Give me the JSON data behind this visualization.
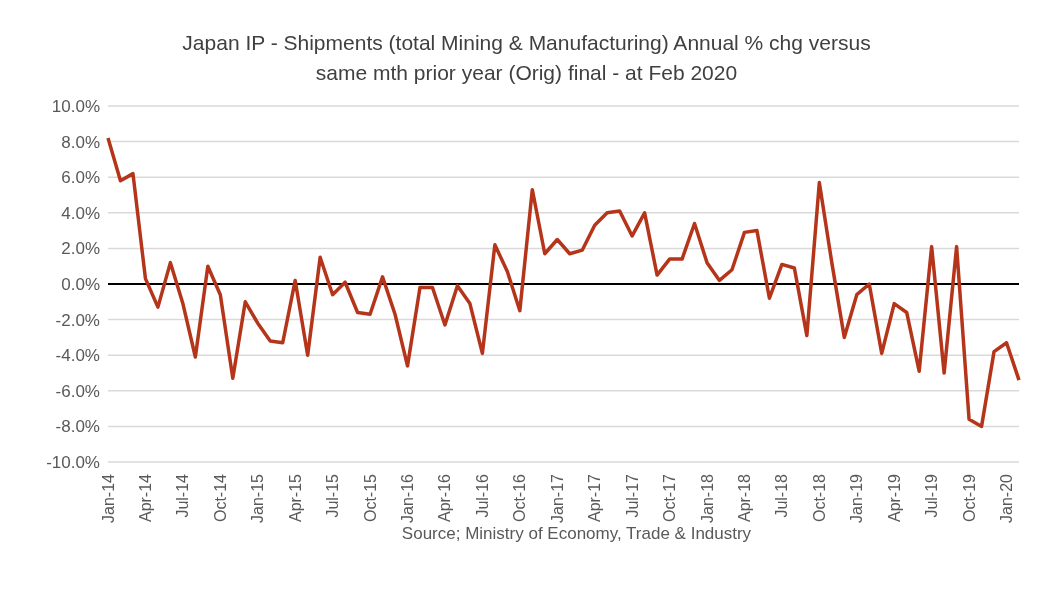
{
  "chart_data": {
    "type": "line",
    "title": "Japan IP - Shipments (total Mining & Manufacturing) Annual % chg versus same mth prior year (Orig) final - at Feb 2020",
    "categories": [
      "Jan-14",
      null,
      null,
      "Apr-14",
      null,
      null,
      "Jul-14",
      null,
      null,
      "Oct-14",
      null,
      null,
      "Jan-15",
      null,
      null,
      "Apr-15",
      null,
      null,
      "Jul-15",
      null,
      null,
      "Oct-15",
      null,
      null,
      "Jan-16",
      null,
      null,
      "Apr-16",
      null,
      null,
      "Jul-16",
      null,
      null,
      "Oct-16",
      null,
      null,
      "Jan-17",
      null,
      null,
      "Apr-17",
      null,
      null,
      "Jul-17",
      null,
      null,
      "Oct-17",
      null,
      null,
      "Jan-18",
      null,
      null,
      "Apr-18",
      null,
      null,
      "Jul-18",
      null,
      null,
      "Oct-18",
      null,
      null,
      "Jan-19",
      null,
      null,
      "Apr-19",
      null,
      null,
      "Jul-19",
      null,
      null,
      "Oct-19",
      null,
      null,
      "Jan-20",
      null
    ],
    "series": [
      {
        "color": "#b5351a",
        "values": [
          8.2,
          5.8,
          6.2,
          0.3,
          -1.3,
          1.2,
          -1.1,
          -4.1,
          1.0,
          -0.6,
          -5.3,
          -1.0,
          -2.2,
          -3.2,
          -3.3,
          0.2,
          -4.0,
          1.5,
          -0.6,
          0.1,
          -1.6,
          -1.7,
          0.4,
          -1.7,
          -4.6,
          -0.2,
          -0.2,
          -2.3,
          -0.1,
          -1.1,
          -3.9,
          2.2,
          0.7,
          -1.5,
          5.3,
          1.7,
          2.5,
          1.7,
          1.9,
          3.3,
          4.0,
          4.1,
          2.7,
          4.0,
          0.5,
          1.4,
          1.4,
          3.4,
          1.2,
          0.2,
          0.8,
          2.9,
          3.0,
          -0.8,
          1.1,
          0.9,
          -2.9,
          5.7,
          1.2,
          -3.0,
          -0.6,
          0.0,
          -3.9,
          -1.1,
          -1.6,
          -4.9,
          2.1,
          -5.0,
          2.1,
          -7.6,
          -8.0,
          -3.8,
          -3.3,
          -5.4
        ]
      }
    ],
    "ylim": [
      -10,
      10
    ],
    "yticks": [
      {
        "value": -10,
        "label": "-10.0%"
      },
      {
        "value": -8,
        "label": "-8.0%"
      },
      {
        "value": -6,
        "label": "-6.0%"
      },
      {
        "value": -4,
        "label": "-4.0%"
      },
      {
        "value": -2,
        "label": "-2.0%"
      },
      {
        "value": 0,
        "label": "0.0%"
      },
      {
        "value": 2,
        "label": "2.0%"
      },
      {
        "value": 4,
        "label": "4.0%"
      },
      {
        "value": 6,
        "label": "6.0%"
      },
      {
        "value": 8,
        "label": "8.0%"
      },
      {
        "value": 10,
        "label": "10.0%"
      }
    ],
    "ref_lines": [
      {
        "axis": "y",
        "value": 0,
        "color": "#000000"
      }
    ],
    "grid": "y",
    "legend": false,
    "marker": "none",
    "line_style": "solid",
    "annotations": [
      "Source; Ministry of Economy, Trade & Industry"
    ]
  }
}
